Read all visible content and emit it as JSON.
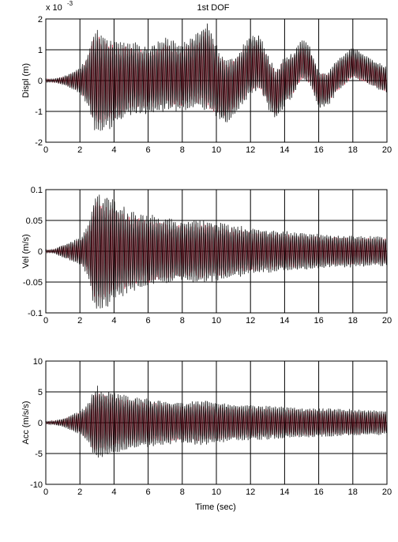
{
  "figure": {
    "title": "1st DOF",
    "xlabel": "Time (sec)"
  },
  "colors": {
    "series_a": "#000000",
    "series_b": "#c0102c",
    "grid": "#000000",
    "axes": "#000000"
  },
  "chart_data": [
    {
      "type": "line",
      "title": "1st DOF",
      "ylabel": "Displ (m)",
      "xlabel": "",
      "exponent_label": "x 10",
      "exponent_power": "-3",
      "xlim": [
        0,
        20
      ],
      "ylim": [
        -2,
        2
      ],
      "xticks": [
        0,
        2,
        4,
        6,
        8,
        10,
        12,
        14,
        16,
        18,
        20
      ],
      "xtick_labels": [
        "0",
        "2",
        "4",
        "6",
        "8",
        "10",
        "12",
        "14",
        "16",
        "18",
        "20"
      ],
      "yticks": [
        2,
        1,
        0,
        -1,
        -2
      ],
      "ytick_labels": [
        "2",
        "1",
        "0",
        "-1",
        "-2"
      ],
      "grid": true,
      "signal": {
        "envelope_t": [
          0,
          0.5,
          1,
          1.5,
          2,
          2.5,
          2.8,
          3,
          3.5,
          4,
          5,
          6,
          7,
          8,
          9,
          9.5,
          10,
          11,
          12,
          13,
          14,
          15,
          16,
          17,
          18,
          19,
          20
        ],
        "envelope_a": [
          0.05,
          0.05,
          0.12,
          0.25,
          0.4,
          0.8,
          1.5,
          1.6,
          1.45,
          1.3,
          1.1,
          1.0,
          1.1,
          1.0,
          1.15,
          1.4,
          1.1,
          0.9,
          0.9,
          0.8,
          0.75,
          0.6,
          0.55,
          0.5,
          0.45,
          0.42,
          0.4
        ],
        "drift_t": [
          0,
          2,
          3,
          4,
          5,
          6,
          7,
          8,
          9,
          9.5,
          10,
          10.5,
          11,
          12,
          12.5,
          13,
          13.5,
          14,
          14.5,
          15,
          15.5,
          16,
          16.5,
          17,
          18,
          19,
          20
        ],
        "drift_v": [
          0,
          0,
          0,
          -0.1,
          0.1,
          0,
          0.2,
          0.1,
          0.4,
          0.4,
          0,
          -0.4,
          -0.2,
          0.5,
          0.6,
          0,
          -0.5,
          0,
          0.2,
          0.7,
          0.5,
          -0.3,
          -0.3,
          0.1,
          0.6,
          0.3,
          0
        ],
        "cycles_per_sec": 9,
        "series_b_scale": 0.85
      }
    },
    {
      "type": "line",
      "title": "",
      "ylabel": "Vel (m/s)",
      "xlabel": "",
      "xlim": [
        0,
        20
      ],
      "ylim": [
        -0.1,
        0.1
      ],
      "xticks": [
        0,
        2,
        4,
        6,
        8,
        10,
        12,
        14,
        16,
        18,
        20
      ],
      "xtick_labels": [
        "0",
        "2",
        "4",
        "6",
        "8",
        "10",
        "12",
        "14",
        "16",
        "18",
        "20"
      ],
      "yticks": [
        0.1,
        0.05,
        0,
        -0.05,
        -0.1
      ],
      "ytick_labels": [
        "0.1",
        "0.05",
        "0",
        "-0.05",
        "-0.1"
      ],
      "grid": true,
      "signal": {
        "envelope_t": [
          0,
          0.5,
          1,
          1.5,
          2,
          2.5,
          2.8,
          3,
          3.5,
          4,
          5,
          6,
          7,
          8,
          9,
          10,
          11,
          12,
          13,
          14,
          15,
          16,
          17,
          18,
          19,
          20
        ],
        "envelope_a": [
          0.002,
          0.003,
          0.01,
          0.015,
          0.02,
          0.04,
          0.08,
          0.09,
          0.085,
          0.075,
          0.06,
          0.055,
          0.05,
          0.045,
          0.048,
          0.045,
          0.04,
          0.035,
          0.032,
          0.03,
          0.028,
          0.026,
          0.025,
          0.024,
          0.023,
          0.022
        ],
        "drift_t": [
          0,
          20
        ],
        "drift_v": [
          0,
          0
        ],
        "cycles_per_sec": 9,
        "series_b_scale": 0.85
      }
    },
    {
      "type": "line",
      "title": "",
      "ylabel": "Acc (m/s/s)",
      "xlabel": "Time (sec)",
      "xlim": [
        0,
        20
      ],
      "ylim": [
        -10,
        10
      ],
      "xticks": [
        0,
        2,
        4,
        6,
        8,
        10,
        12,
        14,
        16,
        18,
        20
      ],
      "xtick_labels": [
        "0",
        "2",
        "4",
        "6",
        "8",
        "10",
        "12",
        "14",
        "16",
        "18",
        "20"
      ],
      "yticks": [
        10,
        5,
        0,
        -5,
        -10
      ],
      "ytick_labels": [
        "10",
        "5",
        "0",
        "-5",
        "-10"
      ],
      "grid": true,
      "signal": {
        "envelope_t": [
          0,
          0.5,
          1,
          1.5,
          2,
          2.5,
          2.8,
          3,
          3.5,
          4,
          5,
          6,
          7,
          8,
          9,
          10,
          11,
          12,
          13,
          14,
          15,
          16,
          17,
          18,
          19,
          20
        ],
        "envelope_a": [
          0.2,
          0.3,
          0.6,
          1.2,
          1.8,
          3.0,
          5.2,
          5.5,
          5.0,
          4.6,
          4.0,
          3.6,
          3.3,
          3.0,
          3.4,
          3.0,
          2.8,
          2.6,
          2.5,
          2.4,
          2.3,
          2.2,
          2.1,
          2.0,
          1.9,
          1.8
        ],
        "drift_t": [
          0,
          20
        ],
        "drift_v": [
          0,
          0
        ],
        "cycles_per_sec": 9,
        "series_b_scale": 0.85
      }
    }
  ]
}
